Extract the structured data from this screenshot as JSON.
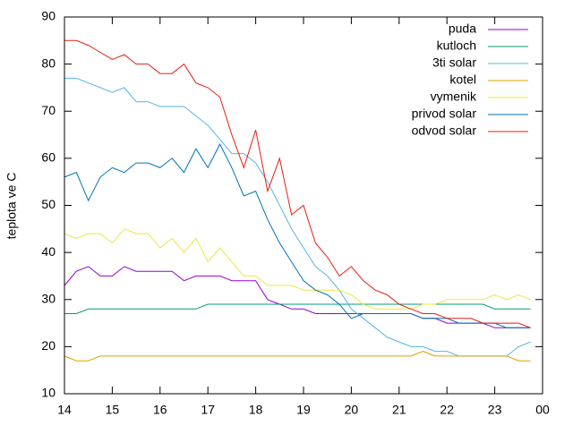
{
  "chart_data": {
    "type": "line",
    "ylabel": "teplota ve C",
    "x": [
      14,
      14.25,
      14.5,
      14.75,
      15,
      15.25,
      15.5,
      15.75,
      16,
      16.25,
      16.5,
      16.75,
      17,
      17.25,
      17.5,
      17.75,
      18,
      18.25,
      18.5,
      18.75,
      19,
      19.25,
      19.5,
      19.75,
      20,
      20.25,
      20.5,
      20.75,
      21,
      21.25,
      21.5,
      21.75,
      22,
      22.25,
      22.5,
      22.75,
      23,
      23.25,
      23.5,
      23.75
    ],
    "xlim": [
      14,
      24
    ],
    "xticks": [
      14,
      15,
      16,
      17,
      18,
      19,
      20,
      21,
      22,
      23,
      {
        "value": 24,
        "label": "00"
      }
    ],
    "ylim": [
      10,
      90
    ],
    "yticks": [
      10,
      20,
      30,
      40,
      50,
      60,
      70,
      80,
      90
    ],
    "legend": "top-right",
    "series": [
      {
        "name": "puda",
        "color": "#9400d3",
        "values": [
          33,
          36,
          37,
          35,
          35,
          37,
          36,
          36,
          36,
          36,
          34,
          35,
          35,
          35,
          34,
          34,
          34,
          30,
          29,
          28,
          28,
          27,
          27,
          27,
          27,
          27,
          27,
          27,
          27,
          27,
          26,
          26,
          25,
          25,
          25,
          25,
          24,
          24,
          24,
          24
        ]
      },
      {
        "name": "kutloch",
        "color": "#009e73",
        "values": [
          27,
          27,
          28,
          28,
          28,
          28,
          28,
          28,
          28,
          28,
          28,
          28,
          29,
          29,
          29,
          29,
          29,
          29,
          29,
          29,
          29,
          29,
          29,
          29,
          29,
          29,
          29,
          29,
          29,
          29,
          29,
          29,
          29,
          29,
          29,
          29,
          28,
          28,
          28,
          28
        ]
      },
      {
        "name": "3ti solar",
        "color": "#56b4e9",
        "values": [
          77,
          77,
          76,
          75,
          74,
          75,
          72,
          72,
          71,
          71,
          71,
          69,
          67,
          64,
          61,
          61,
          59,
          55,
          50,
          45,
          41,
          37,
          35,
          32,
          28,
          26,
          24,
          22,
          21,
          20,
          20,
          19,
          19,
          18,
          18,
          18,
          18,
          18,
          20,
          21
        ]
      },
      {
        "name": "kotel",
        "color": "#e69f00",
        "values": [
          18,
          17,
          17,
          18,
          18,
          18,
          18,
          18,
          18,
          18,
          18,
          18,
          18,
          18,
          18,
          18,
          18,
          18,
          18,
          18,
          18,
          18,
          18,
          18,
          18,
          18,
          18,
          18,
          18,
          18,
          19,
          18,
          18,
          18,
          18,
          18,
          18,
          18,
          17,
          17
        ]
      },
      {
        "name": "vymenik",
        "color": "#f0e442",
        "values": [
          44,
          43,
          44,
          44,
          42,
          45,
          44,
          44,
          41,
          43,
          40,
          43,
          38,
          41,
          38,
          35,
          35,
          33,
          33,
          33,
          32,
          32,
          32,
          32,
          31,
          29,
          28,
          28,
          28,
          28,
          29,
          29,
          30,
          30,
          30,
          30,
          31,
          30,
          31,
          30
        ]
      },
      {
        "name": "privod solar",
        "color": "#0072b2",
        "values": [
          56,
          57,
          51,
          56,
          58,
          57,
          59,
          59,
          58,
          60,
          57,
          62,
          58,
          63,
          58,
          52,
          53,
          47,
          42,
          38,
          34,
          32,
          31,
          29,
          26,
          27,
          27,
          27,
          27,
          27,
          26,
          26,
          26,
          25,
          25,
          25,
          25,
          24,
          24,
          24
        ]
      },
      {
        "name": "odvod solar",
        "color": "#e51e10",
        "values": [
          85,
          85,
          84,
          82.5,
          81,
          82,
          80,
          80,
          78,
          78,
          80,
          76,
          75,
          73,
          65,
          58,
          66,
          53,
          60,
          48,
          50,
          42,
          39,
          35,
          37,
          34,
          32,
          31,
          29,
          28,
          27,
          27,
          26,
          26,
          26,
          25,
          25,
          25,
          25,
          24
        ]
      }
    ]
  }
}
